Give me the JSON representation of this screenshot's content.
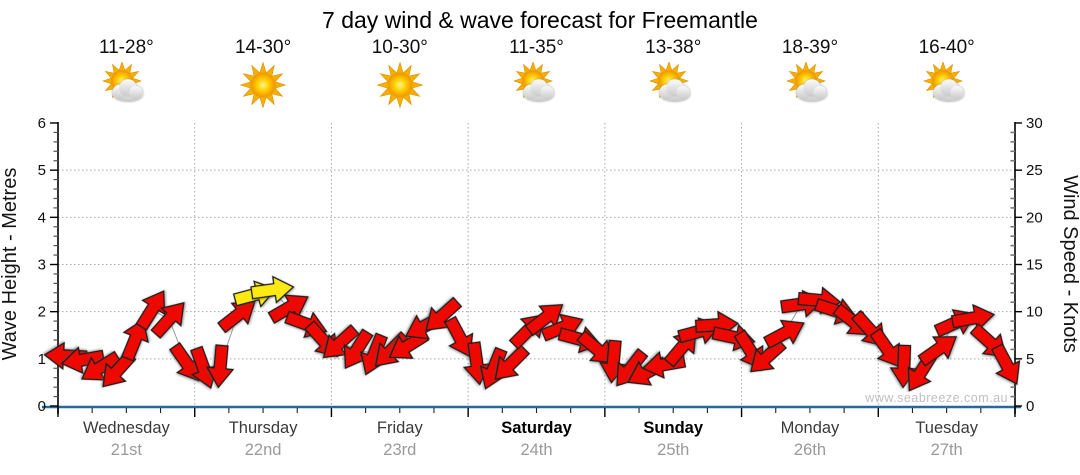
{
  "title": "7 day wind & wave forecast for Freemantle",
  "watermark": "www.seabreeze.com.au",
  "days": [
    {
      "name": "Wednesday",
      "date": "21st",
      "temp": "11-28°",
      "icon": "sun-behind-cloud",
      "bold": false
    },
    {
      "name": "Thursday",
      "date": "22nd",
      "temp": "14-30°",
      "icon": "sun",
      "bold": false
    },
    {
      "name": "Friday",
      "date": "23rd",
      "temp": "10-30°",
      "icon": "sun",
      "bold": false
    },
    {
      "name": "Saturday",
      "date": "24th",
      "temp": "11-35°",
      "icon": "sun-behind-cloud",
      "bold": true
    },
    {
      "name": "Sunday",
      "date": "25th",
      "temp": "13-38°",
      "icon": "sun-behind-cloud",
      "bold": true
    },
    {
      "name": "Monday",
      "date": "26th",
      "temp": "18-39°",
      "icon": "sun-behind-cloud",
      "bold": false
    },
    {
      "name": "Tuesday",
      "date": "27th",
      "temp": "16-40°",
      "icon": "sun-behind-cloud",
      "bold": false
    }
  ],
  "axes": {
    "left": {
      "label": "Wave Height - Metres",
      "ticks": [
        "0",
        "1",
        "2",
        "3",
        "4",
        "5",
        "6"
      ],
      "range": [
        0,
        6
      ]
    },
    "right": {
      "label": "Wind Speed - Knots",
      "ticks": [
        "0",
        "5",
        "10",
        "15",
        "20",
        "25",
        "30"
      ],
      "range": [
        0,
        30
      ]
    },
    "bottom_days": [
      "Wednesday 21st",
      "Thursday 22nd",
      "Friday 23rd",
      "Saturday 24th",
      "Sunday 25th",
      "Monday 26th",
      "Tuesday 27th"
    ]
  },
  "colors": {
    "arrow_red": "#ED0800",
    "arrow_yellow": "#FFE913",
    "arrow_outline": "#1c1c1c",
    "x_axis_line": "#256A9B",
    "grid": "#a8a8a8",
    "date_text": "#9a9a9a",
    "watermark_text": "#c0c0c0"
  },
  "chart_data": {
    "type": "scatter",
    "subtype": "wind-direction-arrow-timeseries",
    "title": "7 day wind & wave forecast for Freemantle",
    "x_categories": [
      "Wednesday 21st",
      "Thursday 22nd",
      "Friday 23rd",
      "Saturday 24th",
      "Sunday 25th",
      "Monday 26th",
      "Tuesday 27th"
    ],
    "points_per_day": 8,
    "left_axis": {
      "label": "Wave Height - Metres",
      "range": [
        0,
        6
      ],
      "grid_at": [
        1,
        2,
        3,
        4,
        5
      ]
    },
    "right_axis": {
      "label": "Wind Speed - Knots",
      "range": [
        0,
        30
      ],
      "grid_at": [
        5,
        10,
        15,
        20,
        25
      ]
    },
    "legend": "none",
    "grid": "dotted horizontal each metre, dotted vertical each day boundary",
    "series": [
      {
        "name": "Wind speed (knots) with direction arrows",
        "marker": "block-arrow",
        "dir_deg_convention": "screen angle of arrow point: 0=right, 90=down, 180=left, 270=up",
        "knots": [
          5.3,
          4.9,
          4.1,
          3.8,
          7.0,
          10.2,
          9.2,
          4.6,
          4.1,
          4.3,
          9.6,
          11.8,
          12.3,
          10.4,
          8.7,
          7.0,
          6.7,
          6.0,
          5.5,
          5.9,
          6.4,
          8.5,
          9.6,
          7.3,
          4.6,
          4.0,
          4.5,
          8.0,
          9.3,
          8.3,
          7.1,
          6.1,
          4.8,
          4.0,
          3.6,
          4.4,
          6.2,
          7.9,
          8.6,
          7.3,
          5.9,
          5.2,
          7.7,
          10.8,
          11.2,
          10.1,
          9.0,
          8.1,
          6.1,
          4.3,
          3.6,
          6.0,
          8.8,
          9.3,
          6.8,
          4.4
        ],
        "dir_deg": [
          183,
          170,
          148,
          132,
          292,
          302,
          312,
          55,
          70,
          95,
          322,
          345,
          352,
          330,
          20,
          48,
          138,
          122,
          112,
          135,
          148,
          152,
          138,
          62,
          82,
          112,
          135,
          315,
          322,
          338,
          15,
          40,
          95,
          128,
          152,
          170,
          310,
          345,
          356,
          12,
          58,
          138,
          332,
          352,
          5,
          18,
          38,
          48,
          55,
          92,
          122,
          325,
          336,
          350,
          42,
          62
        ],
        "yellow_indices": [
          11,
          12
        ]
      }
    ],
    "annotations": [
      "www.seabreeze.com.au"
    ]
  }
}
